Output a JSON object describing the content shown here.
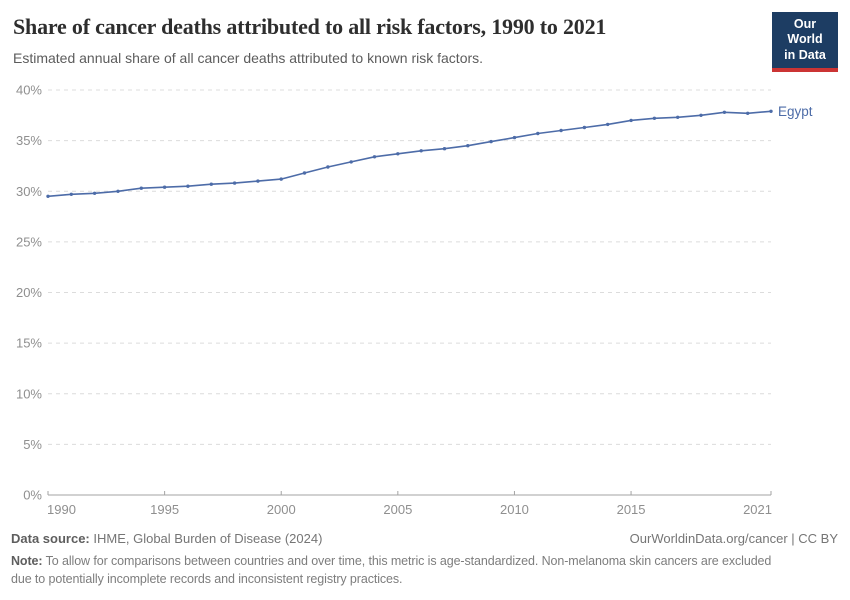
{
  "header": {
    "title": "Share of cancer deaths attributed to all risk factors, 1990 to 2021",
    "subtitle": "Estimated annual share of all cancer deaths attributed to known risk factors.",
    "logo_line1": "Our World",
    "logo_line2": "in Data"
  },
  "chart_data": {
    "type": "line",
    "title": "Share of cancer deaths attributed to all risk factors, 1990 to 2021",
    "subtitle": "Estimated annual share of all cancer deaths attributed to known risk factors.",
    "x": [
      1990,
      1991,
      1992,
      1993,
      1994,
      1995,
      1996,
      1997,
      1998,
      1999,
      2000,
      2001,
      2002,
      2003,
      2004,
      2005,
      2006,
      2007,
      2008,
      2009,
      2010,
      2011,
      2012,
      2013,
      2014,
      2015,
      2016,
      2017,
      2018,
      2019,
      2020,
      2021
    ],
    "series": [
      {
        "name": "Egypt",
        "color": "#4d6ca8",
        "values": [
          29.5,
          29.7,
          29.8,
          30.0,
          30.3,
          30.4,
          30.5,
          30.7,
          30.8,
          31.0,
          31.2,
          31.8,
          32.4,
          32.9,
          33.4,
          33.7,
          34.0,
          34.2,
          34.5,
          34.9,
          35.3,
          35.7,
          36.0,
          36.3,
          36.6,
          37.0,
          37.2,
          37.3,
          37.5,
          37.8,
          37.7,
          37.9
        ]
      }
    ],
    "xlim": [
      1990,
      2021
    ],
    "ylim": [
      0,
      40
    ],
    "xticks": [
      1990,
      1995,
      2000,
      2005,
      2010,
      2015,
      2021
    ],
    "yticks": [
      0,
      5,
      10,
      15,
      20,
      25,
      30,
      35,
      40
    ],
    "ytick_suffix": "%",
    "grid": "horizontal-dashed",
    "legend_position": "line-end-label",
    "marker": "dot"
  },
  "footer": {
    "datasource_label": "Data source:",
    "datasource_text": "IHME, Global Burden of Disease (2024)",
    "attribution": "OurWorldinData.org/cancer | CC BY",
    "note_label": "Note:",
    "note_line1": "To allow for comparisons between countries and over time, this metric is age-standardized. Non-melanoma skin cancers are excluded",
    "note_line2": "due to potentially incomplete records and inconsistent registry practices."
  },
  "colors": {
    "line": "#4d6ca8",
    "grid": "#dcdcdc",
    "axis": "#a3a3a3",
    "tick_label": "#8f8f8f",
    "series_label": "#4d6ca8",
    "logo_bg": "#1d3d63",
    "logo_red": "#cb3434",
    "title_text": "#2e2e2e",
    "subtitle_text": "#5c5c5c",
    "footer_text": "#757575"
  }
}
